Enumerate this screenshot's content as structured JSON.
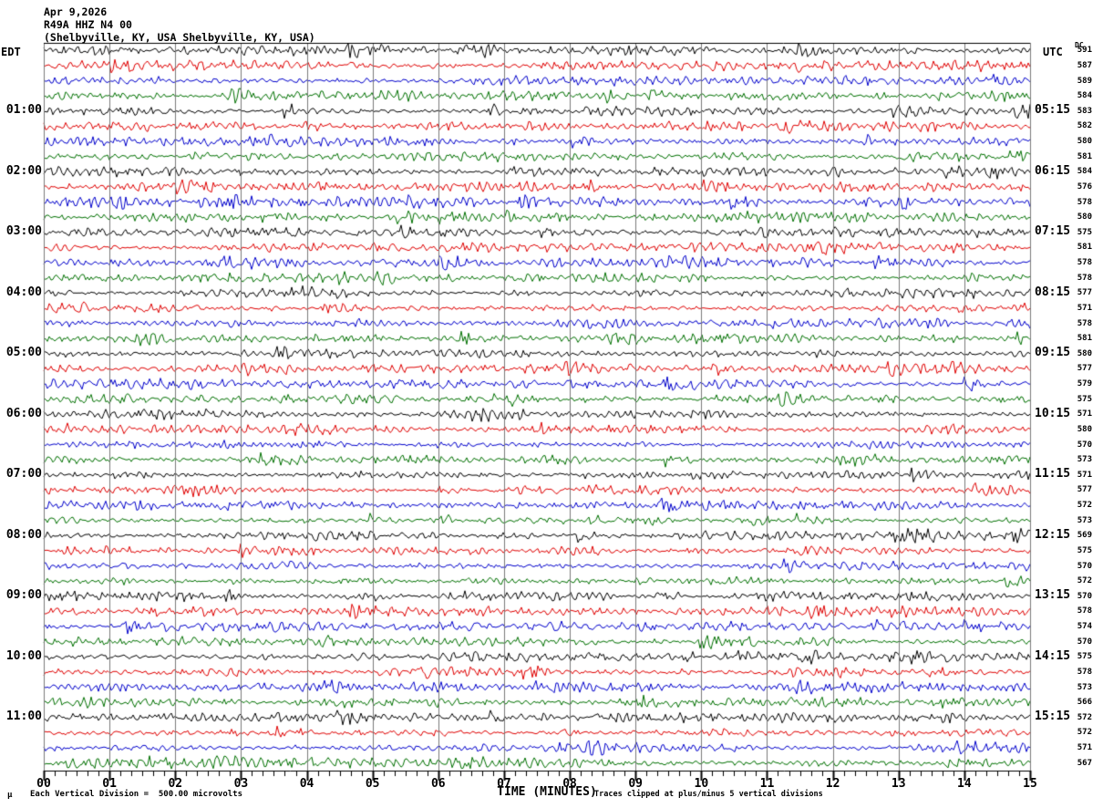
{
  "header": {
    "date": "Apr 9,2026",
    "station": "R49A HHZ N4 00",
    "location": "(Shelbyville, KY, USA Shelbyville, KY, USA)"
  },
  "footer": {
    "mu_mark": "μ",
    "scale_note": "Each Vertical Division =  500.00 microvolts",
    "clip_note": "Traces clipped at plus/minus 5 vertical divisions",
    "xlabel": "TIME (MINUTES)"
  },
  "colors": {
    "trace_cycle": [
      "#000000",
      "#e00000",
      "#0000cc",
      "#007000"
    ],
    "grid": "#7a7a7a",
    "border": "#000000",
    "background": "#ffffff"
  },
  "chart_data": {
    "type": "line",
    "subtype": "seismogram-heliplot",
    "title": "R49A HHZ N4 00 (Shelbyville, KY, USA) — Apr 9,2026",
    "xlabel": "TIME (MINUTES)",
    "x_tick_labels": [
      "00",
      "01",
      "02",
      "03",
      "04",
      "05",
      "06",
      "07",
      "08",
      "09",
      "10",
      "11",
      "12",
      "13",
      "14",
      "15"
    ],
    "x_range_minutes": [
      0,
      15
    ],
    "x_minor_ticks_per_interval": 5,
    "rows_count": 48,
    "minutes_per_row": 15,
    "row_color_cycle": [
      "black",
      "red",
      "blue",
      "green"
    ],
    "left_time_zone": "EDT",
    "left_hour_labels": [
      "01:00",
      "02:00",
      "03:00",
      "04:00",
      "05:00",
      "06:00",
      "07:00",
      "08:00",
      "09:00",
      "10:00",
      "11:00"
    ],
    "right_time_zone": "UTC",
    "right_hour_labels": [
      "05:15",
      "06:15",
      "07:15",
      "08:15",
      "09:15",
      "10:15",
      "11:15",
      "12:15",
      "13:15",
      "14:15",
      "15:15"
    ],
    "dc_label": "DC",
    "dc_offsets": [
      591,
      587,
      589,
      584,
      583,
      582,
      580,
      581,
      584,
      576,
      578,
      580,
      575,
      581,
      578,
      578,
      577,
      571,
      578,
      581,
      580,
      577,
      579,
      575,
      571,
      580,
      570,
      573,
      571,
      577,
      572,
      573,
      569,
      575,
      570,
      572,
      570,
      578,
      574,
      570,
      575,
      578,
      573,
      566,
      572,
      572,
      571,
      567
    ],
    "scale_note": "Each Vertical Division =  500.00 microvolts",
    "clip_note": "Traces clipped at plus/minus 5 vertical divisions",
    "grid": true
  }
}
